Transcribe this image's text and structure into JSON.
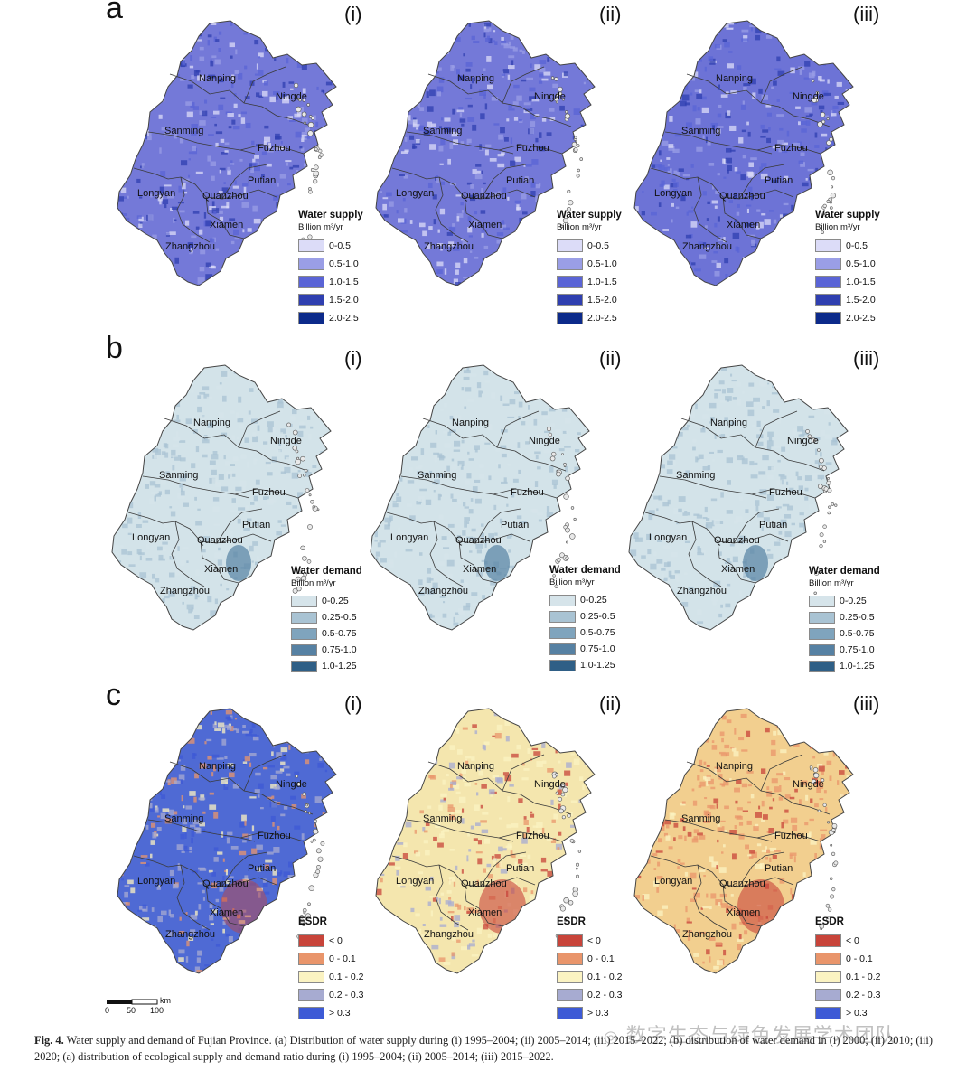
{
  "panel_letters": [
    "a",
    "b",
    "c"
  ],
  "column_labels": [
    "(i)",
    "(ii)",
    "(iii)"
  ],
  "cities": [
    "Nanping",
    "Ningde",
    "Sanming",
    "Fuzhou",
    "Putian",
    "Longyan",
    "Quanzhou",
    "Xiamen",
    "Zhangzhou"
  ],
  "legends": {
    "supply": {
      "title": "Water supply",
      "unit": "Billion m³/yr",
      "classes": [
        {
          "label": "0-0.5",
          "color": "#dcdcf8"
        },
        {
          "label": "0.5-1.0",
          "color": "#9a9ee6"
        },
        {
          "label": "1.0-1.5",
          "color": "#5a64d6"
        },
        {
          "label": "1.5-2.0",
          "color": "#2f3fb0"
        },
        {
          "label": "2.0-2.5",
          "color": "#0c2a8a"
        }
      ]
    },
    "demand": {
      "title": "Water demand",
      "unit": "Billion m³/yr",
      "classes": [
        {
          "label": "0-0.25",
          "color": "#d6e4ea"
        },
        {
          "label": "0.25-0.5",
          "color": "#a9c3d3"
        },
        {
          "label": "0.5-0.75",
          "color": "#7fa4bd"
        },
        {
          "label": "0.75-1.0",
          "color": "#5681a3"
        },
        {
          "label": "1.0-1.25",
          "color": "#2f5f86"
        }
      ]
    },
    "esdr": {
      "title": "ESDR",
      "unit": "",
      "classes": [
        {
          "label": "< 0",
          "color": "#c8443a"
        },
        {
          "label": "0 - 0.1",
          "color": "#e9956b"
        },
        {
          "label": "0.1 - 0.2",
          "color": "#fbf3c2"
        },
        {
          "label": "0.2 - 0.3",
          "color": "#a7abd1"
        },
        {
          "label": "> 0.3",
          "color": "#3d5ad6"
        }
      ]
    }
  },
  "map_fills": {
    "a": [
      "#7479d8",
      "#7479d8",
      "#6d73d6"
    ],
    "b": [
      "#d3e3e9",
      "#d3e3e9",
      "#d3e3e9"
    ],
    "c": [
      "#4f6ad4",
      "#f4e6ae",
      "#f2cf8f"
    ]
  },
  "scalebar": {
    "ticks": [
      "0",
      "50",
      "100"
    ],
    "unit": "km"
  },
  "caption": {
    "label": "Fig. 4.",
    "text": "Water supply and demand of Fujian Province. (a) Distribution of water supply during (i) 1995–2004; (ii) 2005–2014; (iii) 2015–2022; (b) distribution of water demand in (i) 2000; (ii) 2010; (iii) 2020; (a) distribution of ecological supply and demand ratio during (i) 1995–2004; (ii) 2005–2014; (iii) 2015–2022."
  },
  "watermark": "数字生态与绿色发展学术团队"
}
